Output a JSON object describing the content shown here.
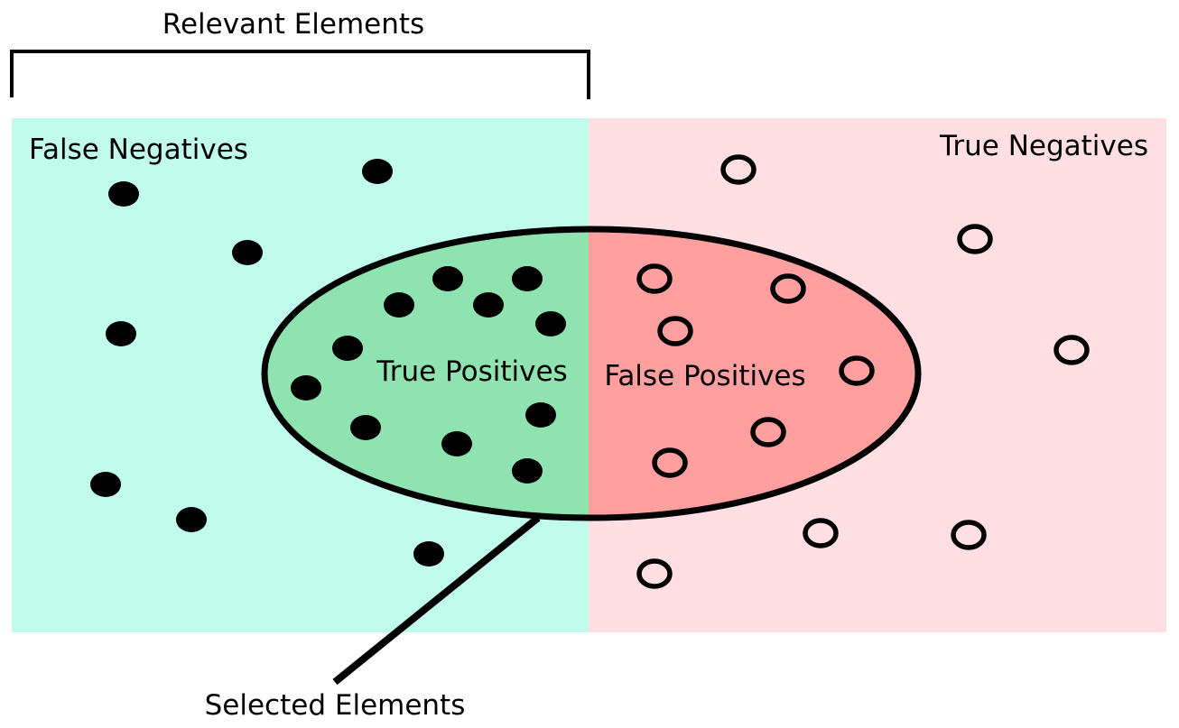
{
  "labels": {
    "relevant": "Relevant Elements",
    "false_negatives": "False Negatives",
    "true_negatives": "True Negatives",
    "true_positives": "True Positives",
    "false_positives": "False Positives",
    "selected": "Selected Elements"
  },
  "colors": {
    "relevant_region": "#c0fbeb",
    "irrelevant_region": "#ffdfe4",
    "true_positive_fill": "#8fe3b0",
    "false_positive_fill": "#ff9f9f",
    "ink": "#000000"
  }
}
